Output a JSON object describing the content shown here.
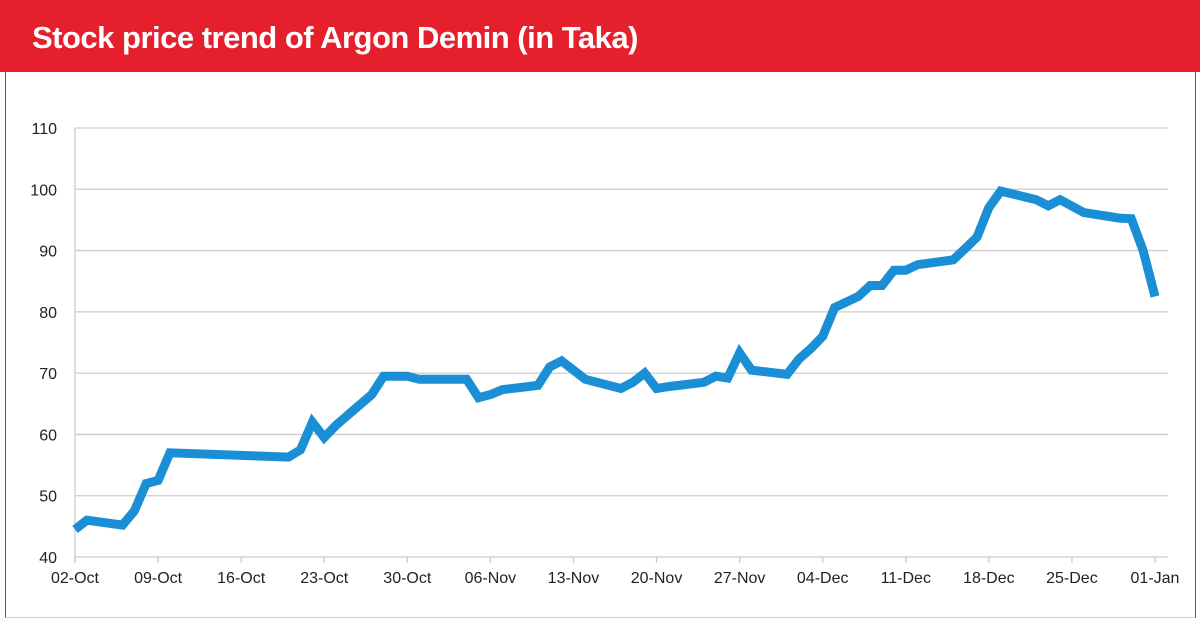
{
  "header": {
    "title": "Stock price trend of Argon Demin (in Taka)"
  },
  "colors": {
    "banner": "#e51f2b",
    "line": "#1b8fd6",
    "grid": "#cccccc"
  },
  "chart_data": {
    "type": "line",
    "title": "Stock price trend of Argon Demin (in Taka)",
    "xlabel": "",
    "ylabel": "",
    "ylim": [
      40,
      110
    ],
    "yticks": [
      40,
      50,
      60,
      70,
      80,
      90,
      100,
      110
    ],
    "xlim": [
      "02-Oct",
      "01-Jan"
    ],
    "xtick_labels": [
      "02-Oct",
      "09-Oct",
      "16-Oct",
      "23-Oct",
      "30-Oct",
      "06-Nov",
      "13-Nov",
      "20-Nov",
      "27-Nov",
      "04-Dec",
      "11-Dec",
      "18-Dec",
      "25-Dec",
      "01-Jan"
    ],
    "grid": "horizontal",
    "legend": "none",
    "series": [
      {
        "x": [
          "10-02",
          "10-03",
          "10-06",
          "10-07",
          "10-08",
          "10-09",
          "10-10",
          "10-20",
          "10-21",
          "10-22",
          "10-23",
          "10-24",
          "10-27",
          "10-28",
          "10-30",
          "10-31",
          "11-04",
          "11-05",
          "11-06",
          "11-07",
          "11-10",
          "11-11",
          "11-12",
          "11-14",
          "11-17",
          "11-18",
          "11-19",
          "11-20",
          "11-21",
          "11-24",
          "11-25",
          "11-26",
          "11-27",
          "11-28",
          "12-01",
          "12-02",
          "12-03",
          "12-04",
          "12-05",
          "12-07",
          "12-08",
          "12-09",
          "12-10",
          "12-11",
          "12-12",
          "12-15",
          "12-16",
          "12-17",
          "12-18",
          "12-19",
          "12-22",
          "12-23",
          "12-24",
          "12-26",
          "12-29",
          "12-30",
          "12-31",
          "01-01"
        ],
        "values": [
          44.5,
          46,
          45.2,
          47.5,
          52,
          52.5,
          57,
          56.3,
          57.5,
          62,
          59.5,
          61.5,
          66.5,
          69.5,
          69.5,
          69,
          69,
          66,
          66.5,
          67.3,
          68,
          71,
          72,
          69,
          67.5,
          68.5,
          70,
          67.5,
          67.8,
          68.5,
          69.5,
          69.2,
          73.3,
          70.5,
          69.8,
          72.3,
          74,
          76,
          80.7,
          82.5,
          84.3,
          84.3,
          86.8,
          86.8,
          87.7,
          88.5,
          90.3,
          92.2,
          97,
          99.7,
          98.3,
          97.3,
          98.3,
          96.2,
          95.3,
          95.2,
          90,
          82.5
        ]
      }
    ]
  }
}
